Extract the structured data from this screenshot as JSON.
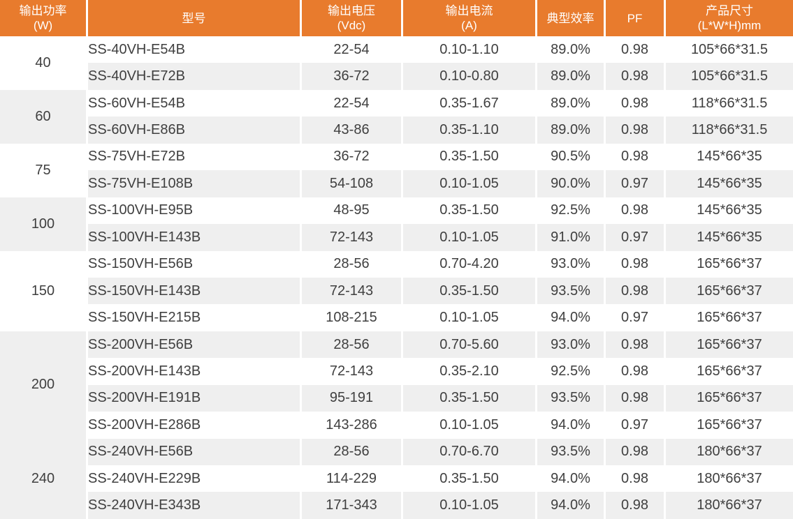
{
  "colors": {
    "header_background": "#e87b2d",
    "header_text": "#ffffff",
    "row_stripe": "#efefef",
    "row_plain": "#ffffff",
    "cell_text": "#3f3f3f",
    "column_separator": "#ffffff"
  },
  "table": {
    "header": {
      "columns": [
        {
          "line1": "输出功率",
          "line2": "(W)"
        },
        {
          "line1": "型号",
          "line2": ""
        },
        {
          "line1": "输出电压",
          "line2": "(Vdc)"
        },
        {
          "line1": "输出电流",
          "line2": "(A)"
        },
        {
          "line1": "典型效率",
          "line2": ""
        },
        {
          "line1": "PF",
          "line2": ""
        },
        {
          "line1": "产品尺寸",
          "line2": "(L*W*H)mm"
        }
      ]
    },
    "groups": [
      {
        "power": "40",
        "models": [
          {
            "model": "SS-40VH-E54B",
            "voltage": "22-54",
            "current": "0.10-1.10",
            "efficiency": "89.0%",
            "pf": "0.98",
            "size": "105*66*31.5"
          },
          {
            "model": "SS-40VH-E72B",
            "voltage": "36-72",
            "current": "0.10-0.80",
            "efficiency": "89.0%",
            "pf": "0.98",
            "size": "105*66*31.5"
          }
        ]
      },
      {
        "power": "60",
        "models": [
          {
            "model": "SS-60VH-E54B",
            "voltage": "22-54",
            "current": "0.35-1.67",
            "efficiency": "89.0%",
            "pf": "0.98",
            "size": "118*66*31.5"
          },
          {
            "model": "SS-60VH-E86B",
            "voltage": "43-86",
            "current": "0.35-1.10",
            "efficiency": "89.0%",
            "pf": "0.98",
            "size": "118*66*31.5"
          }
        ]
      },
      {
        "power": "75",
        "models": [
          {
            "model": "SS-75VH-E72B",
            "voltage": "36-72",
            "current": "0.35-1.50",
            "efficiency": "90.5%",
            "pf": "0.98",
            "size": "145*66*35"
          },
          {
            "model": "SS-75VH-E108B",
            "voltage": "54-108",
            "current": "0.10-1.05",
            "efficiency": "90.0%",
            "pf": "0.97",
            "size": "145*66*35"
          }
        ]
      },
      {
        "power": "100",
        "models": [
          {
            "model": "SS-100VH-E95B",
            "voltage": "48-95",
            "current": "0.35-1.50",
            "efficiency": "92.5%",
            "pf": "0.98",
            "size": "145*66*35"
          },
          {
            "model": "SS-100VH-E143B",
            "voltage": "72-143",
            "current": "0.10-1.05",
            "efficiency": "91.0%",
            "pf": "0.97",
            "size": "145*66*35"
          }
        ]
      },
      {
        "power": "150",
        "models": [
          {
            "model": "SS-150VH-E56B",
            "voltage": "28-56",
            "current": "0.70-4.20",
            "efficiency": "93.0%",
            "pf": "0.98",
            "size": "165*66*37"
          },
          {
            "model": "SS-150VH-E143B",
            "voltage": "72-143",
            "current": "0.35-1.50",
            "efficiency": "93.5%",
            "pf": "0.98",
            "size": "165*66*37"
          },
          {
            "model": "SS-150VH-E215B",
            "voltage": "108-215",
            "current": "0.10-1.05",
            "efficiency": "94.0%",
            "pf": "0.97",
            "size": "165*66*37"
          }
        ]
      },
      {
        "power": "200",
        "models": [
          {
            "model": "SS-200VH-E56B",
            "voltage": "28-56",
            "current": "0.70-5.60",
            "efficiency": "93.0%",
            "pf": "0.98",
            "size": "165*66*37"
          },
          {
            "model": "SS-200VH-E143B",
            "voltage": "72-143",
            "current": "0.35-2.10",
            "efficiency": "92.5%",
            "pf": "0.98",
            "size": "165*66*37"
          },
          {
            "model": "SS-200VH-E191B",
            "voltage": "95-191",
            "current": "0.35-1.50",
            "efficiency": "93.5%",
            "pf": "0.98",
            "size": "165*66*37"
          },
          {
            "model": "SS-200VH-E286B",
            "voltage": "143-286",
            "current": "0.10-1.05",
            "efficiency": "94.0%",
            "pf": "0.97",
            "size": "165*66*37"
          }
        ]
      },
      {
        "power": "240",
        "models": [
          {
            "model": "SS-240VH-E56B",
            "voltage": "28-56",
            "current": "0.70-6.70",
            "efficiency": "93.5%",
            "pf": "0.98",
            "size": "180*66*37"
          },
          {
            "model": "SS-240VH-E229B",
            "voltage": "114-229",
            "current": "0.35-1.50",
            "efficiency": "94.0%",
            "pf": "0.98",
            "size": "180*66*37"
          },
          {
            "model": "SS-240VH-E343B",
            "voltage": "171-343",
            "current": "0.10-1.05",
            "efficiency": "94.0%",
            "pf": "0.98",
            "size": "180*66*37"
          }
        ]
      }
    ]
  }
}
